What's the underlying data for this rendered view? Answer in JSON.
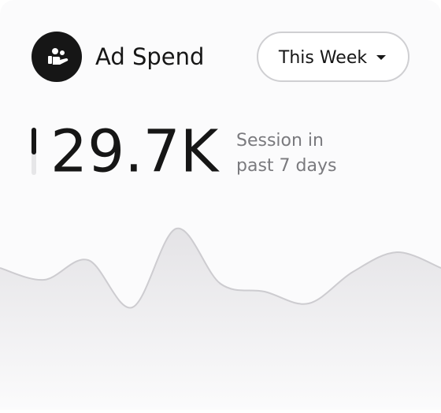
{
  "header": {
    "title": "Ad Spend",
    "period_button": "This Week"
  },
  "metric": {
    "value": "29.7K",
    "caption": [
      "Session in",
      "past 7 days"
    ]
  },
  "sparkline": {
    "type": "area",
    "values": [
      72,
      66,
      76,
      52,
      92,
      64,
      60,
      54,
      70,
      80,
      72
    ],
    "ylim": [
      0,
      100
    ],
    "color": "#e6e5e8"
  }
}
